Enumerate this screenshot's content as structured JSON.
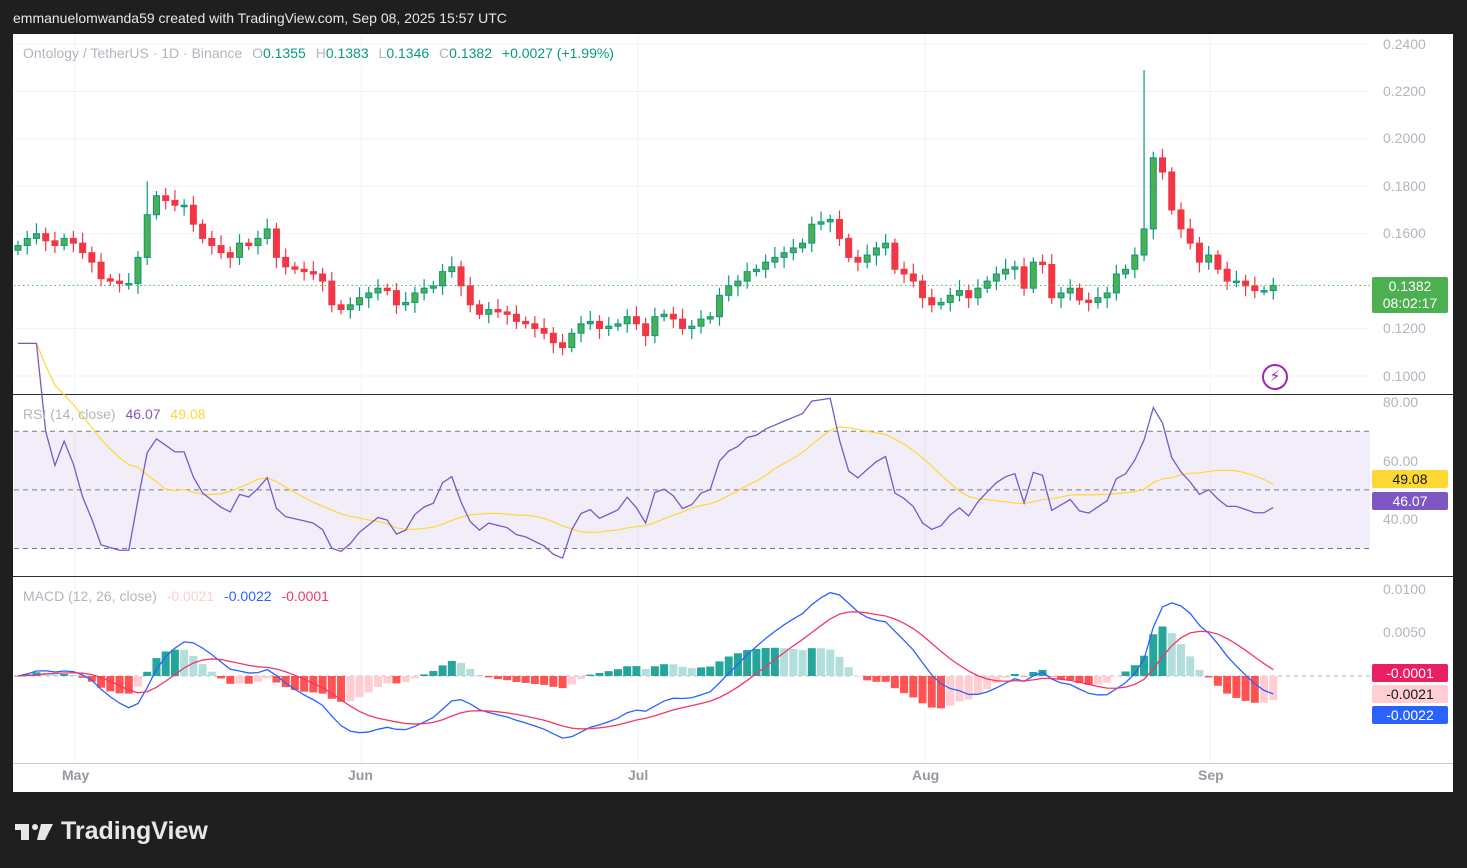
{
  "header": {
    "caption": "emmanuelomwanda59 created with TradingView.com, Sep 08, 2025 15:57 UTC"
  },
  "legend": {
    "symbol": "Ontology / TetherUS · 1D · Binance",
    "o_label": "O",
    "o": "0.1355",
    "h_label": "H",
    "h": "0.1383",
    "l_label": "L",
    "l": "0.1346",
    "c_label": "C",
    "c": "0.1382",
    "change": "+0.0027 (+1.99%)"
  },
  "price_tag": {
    "price": "0.1382",
    "countdown": "08:02:17"
  },
  "price_axis": [
    "0.2400",
    "0.2200",
    "0.2000",
    "0.1800",
    "0.1600",
    "0.1200",
    "0.1000"
  ],
  "rsi": {
    "title": "RSI (14, close)",
    "value": "46.07",
    "ma": "49.08",
    "axis": [
      "80.00",
      "60.00",
      "40.00"
    ]
  },
  "macd": {
    "title": "MACD (12, 26, close)",
    "hist": "-0.0021",
    "macd": "-0.0022",
    "signal": "-0.0001",
    "axis": [
      "0.0100",
      "0.0050"
    ]
  },
  "time_axis": [
    "May",
    "Jun",
    "Jul",
    "Aug",
    "Sep"
  ],
  "branding": {
    "logo_text": "TradingView"
  },
  "colors": {
    "up": "#4caf50",
    "up_border": "#089981",
    "down": "#f23645",
    "rsi": "#7e57c2",
    "rsi_ma": "#fdd835",
    "macd": "#2962ff",
    "signal": "#f23668"
  },
  "chart_data": {
    "type": "candlestick",
    "title": "Ontology / TetherUS · 1D · Binance",
    "start_date": "2025-04-25",
    "end_date": "2025-09-08",
    "ylim": [
      0.095,
      0.245
    ],
    "first_open": 0.153,
    "closes": [
      0.155,
      0.158,
      0.16,
      0.157,
      0.155,
      0.158,
      0.156,
      0.152,
      0.148,
      0.141,
      0.14,
      0.139,
      0.139,
      0.15,
      0.168,
      0.176,
      0.174,
      0.172,
      0.172,
      0.164,
      0.158,
      0.155,
      0.152,
      0.15,
      0.156,
      0.155,
      0.158,
      0.162,
      0.15,
      0.146,
      0.145,
      0.144,
      0.143,
      0.14,
      0.13,
      0.128,
      0.13,
      0.133,
      0.135,
      0.137,
      0.136,
      0.13,
      0.131,
      0.135,
      0.137,
      0.138,
      0.144,
      0.146,
      0.138,
      0.13,
      0.126,
      0.128,
      0.127,
      0.126,
      0.123,
      0.122,
      0.12,
      0.118,
      0.114,
      0.112,
      0.118,
      0.122,
      0.123,
      0.12,
      0.121,
      0.122,
      0.125,
      0.122,
      0.117,
      0.125,
      0.126,
      0.124,
      0.12,
      0.121,
      0.124,
      0.125,
      0.134,
      0.138,
      0.14,
      0.144,
      0.145,
      0.148,
      0.15,
      0.152,
      0.154,
      0.156,
      0.164,
      0.165,
      0.166,
      0.158,
      0.15,
      0.148,
      0.151,
      0.154,
      0.156,
      0.145,
      0.143,
      0.14,
      0.133,
      0.13,
      0.131,
      0.134,
      0.136,
      0.133,
      0.137,
      0.14,
      0.143,
      0.145,
      0.146,
      0.137,
      0.148,
      0.147,
      0.133,
      0.135,
      0.137,
      0.132,
      0.131,
      0.133,
      0.135,
      0.143,
      0.145,
      0.151,
      0.162,
      0.192,
      0.186,
      0.17,
      0.162,
      0.156,
      0.148,
      0.151,
      0.145,
      0.14,
      0.14,
      0.138,
      0.136,
      0.136,
      0.1382
    ],
    "notable_highs": {
      "14": 0.182,
      "88": 0.168,
      "122": 0.229
    },
    "indicators": {
      "rsi_length": 14,
      "rsi_ma_length": 14,
      "macd_fast": 12,
      "macd_slow": 26,
      "macd_signal": 9
    }
  }
}
